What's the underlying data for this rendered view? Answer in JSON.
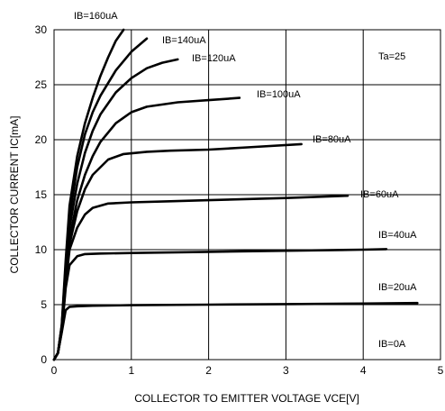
{
  "chart_data": {
    "type": "line",
    "xlabel": "COLLECTOR TO EMITTER VOLTAGE VCE[V]",
    "ylabel": "COLLECTOR CURRENT IC[mA]",
    "xlim": [
      0,
      5
    ],
    "ylim": [
      0,
      30
    ],
    "x_ticks": [
      "0",
      "1",
      "2",
      "3",
      "4",
      "5"
    ],
    "y_ticks": [
      "0",
      "5",
      "10",
      "15",
      "20",
      "25",
      "30"
    ],
    "grid": true,
    "annotation": "Ta=25",
    "series": [
      {
        "name": "IB=20uA",
        "x": [
          0,
          0.05,
          0.1,
          0.15,
          0.2,
          0.3,
          0.5,
          1,
          2,
          3,
          4,
          4.7
        ],
        "y": [
          0,
          0.6,
          2.5,
          4.5,
          4.8,
          4.85,
          4.9,
          4.95,
          5.0,
          5.05,
          5.1,
          5.15
        ]
      },
      {
        "name": "IB=40uA",
        "x": [
          0,
          0.05,
          0.1,
          0.15,
          0.2,
          0.3,
          0.4,
          0.6,
          1,
          2,
          3,
          4,
          4.3
        ],
        "y": [
          0,
          0.6,
          2.6,
          6.5,
          8.6,
          9.4,
          9.6,
          9.65,
          9.7,
          9.8,
          9.9,
          10.0,
          10.05
        ]
      },
      {
        "name": "IB=60uA",
        "x": [
          0,
          0.05,
          0.1,
          0.15,
          0.2,
          0.3,
          0.4,
          0.5,
          0.7,
          1,
          1.5,
          2,
          3,
          3.8
        ],
        "y": [
          0,
          0.6,
          2.7,
          6.8,
          10.0,
          12.0,
          13.2,
          13.8,
          14.2,
          14.3,
          14.4,
          14.5,
          14.7,
          14.9
        ]
      },
      {
        "name": "IB=80uA",
        "x": [
          0,
          0.05,
          0.1,
          0.15,
          0.2,
          0.3,
          0.4,
          0.5,
          0.7,
          0.9,
          1.2,
          1.5,
          2,
          2.5,
          3.2
        ],
        "y": [
          0,
          0.6,
          2.8,
          7.0,
          10.5,
          13.5,
          15.5,
          16.8,
          18.2,
          18.7,
          18.9,
          19.0,
          19.1,
          19.3,
          19.6
        ]
      },
      {
        "name": "IB=100uA",
        "x": [
          0,
          0.05,
          0.1,
          0.15,
          0.2,
          0.3,
          0.4,
          0.5,
          0.6,
          0.8,
          1.0,
          1.2,
          1.6,
          2.0,
          2.4
        ],
        "y": [
          0,
          0.6,
          2.9,
          7.5,
          11.0,
          14.5,
          16.8,
          18.5,
          19.8,
          21.5,
          22.5,
          23.0,
          23.4,
          23.6,
          23.8
        ]
      },
      {
        "name": "IB=120uA",
        "x": [
          0,
          0.05,
          0.1,
          0.15,
          0.2,
          0.3,
          0.4,
          0.5,
          0.6,
          0.8,
          1.0,
          1.2,
          1.4,
          1.6
        ],
        "y": [
          0,
          0.6,
          3.0,
          8.0,
          12.0,
          16.0,
          18.8,
          20.8,
          22.3,
          24.3,
          25.6,
          26.5,
          27.0,
          27.3
        ]
      },
      {
        "name": "IB=140uA",
        "x": [
          0,
          0.05,
          0.1,
          0.15,
          0.2,
          0.3,
          0.4,
          0.5,
          0.6,
          0.8,
          1.0,
          1.2
        ],
        "y": [
          0,
          0.6,
          3.1,
          8.5,
          13.0,
          17.5,
          20.5,
          22.5,
          24.0,
          26.3,
          28.0,
          29.2
        ]
      },
      {
        "name": "IB=160uA",
        "x": [
          0,
          0.05,
          0.1,
          0.15,
          0.2,
          0.3,
          0.4,
          0.5,
          0.6,
          0.7,
          0.8,
          0.9
        ],
        "y": [
          0,
          0.6,
          3.2,
          9.0,
          14.0,
          18.5,
          21.5,
          23.8,
          25.8,
          27.5,
          29.0,
          30.0
        ]
      }
    ],
    "curve_labels": [
      "IB=160uA",
      "IB=140uA",
      "IB=120uA",
      "IB=100uA",
      "IB=80uA",
      "IB=60uA",
      "IB=40uA",
      "IB=20uA",
      "IB=0A"
    ]
  }
}
